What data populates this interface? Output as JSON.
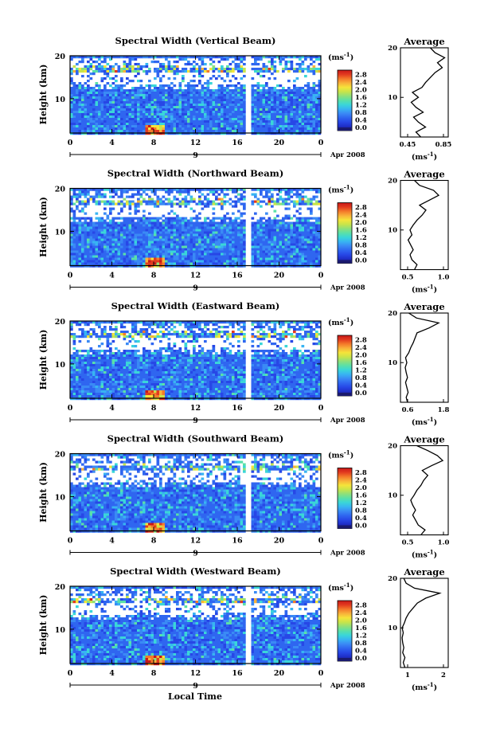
{
  "figure": {
    "ylabel": "Height (km)",
    "xlabel": "Local Time",
    "date_label": "Apr 2008",
    "day_label": "9",
    "unit_label": "(ms",
    "unit_exp": "-1",
    "avg_title": "Average",
    "colorbar_ticks": [
      "0.0",
      "0.4",
      "0.8",
      "1.2",
      "1.6",
      "2.0",
      "2.4",
      "2.8"
    ],
    "colormap": [
      "#1a1a6e",
      "#1f2ec8",
      "#2747e6",
      "#2f66f0",
      "#3a8af5",
      "#38b4f2",
      "#3ad6d8",
      "#5ae0a8",
      "#8ee07a",
      "#c8e44a",
      "#f5e43a",
      "#f8b23a",
      "#f47a2a",
      "#e23a1f",
      "#c81818"
    ]
  },
  "chart_data": [
    {
      "type": "heatmap",
      "title": "Spectral Width (Vertical Beam)",
      "x_ticks": [
        "0",
        "4",
        "8",
        "12",
        "16",
        "20",
        "0"
      ],
      "y_ticks": [
        "20",
        "10"
      ],
      "xlim": [
        0,
        24
      ],
      "ylim": [
        2,
        20
      ],
      "data_gap_hours": [
        16.6,
        17.1
      ],
      "avg": {
        "title": "Average",
        "xticks": [
          "0.45",
          "0.85"
        ],
        "xlim": [
          0.45,
          0.85
        ],
        "profile": [
          [
            2,
            0.62
          ],
          [
            3,
            0.58
          ],
          [
            4,
            0.66
          ],
          [
            5,
            0.6
          ],
          [
            6,
            0.56
          ],
          [
            7,
            0.64
          ],
          [
            8,
            0.58
          ],
          [
            9,
            0.54
          ],
          [
            10,
            0.6
          ],
          [
            11,
            0.55
          ],
          [
            12,
            0.63
          ],
          [
            13,
            0.66
          ],
          [
            14,
            0.7
          ],
          [
            15,
            0.74
          ],
          [
            16,
            0.8
          ],
          [
            17,
            0.76
          ],
          [
            18,
            0.82
          ],
          [
            19,
            0.74
          ],
          [
            20,
            0.7
          ]
        ]
      }
    },
    {
      "type": "heatmap",
      "title": "Spectral Width (Northward Beam)",
      "x_ticks": [
        "0",
        "4",
        "8",
        "12",
        "16",
        "20",
        "0"
      ],
      "y_ticks": [
        "20",
        "10"
      ],
      "xlim": [
        0,
        24
      ],
      "ylim": [
        2,
        20
      ],
      "data_gap_hours": [
        16.6,
        17.1
      ],
      "avg": {
        "title": "Average",
        "xticks": [
          "0.5",
          "1.0"
        ],
        "xlim": [
          0.4,
          1.15
        ],
        "profile": [
          [
            2,
            0.62
          ],
          [
            3,
            0.66
          ],
          [
            4,
            0.58
          ],
          [
            5,
            0.55
          ],
          [
            6,
            0.6
          ],
          [
            7,
            0.56
          ],
          [
            8,
            0.52
          ],
          [
            9,
            0.58
          ],
          [
            10,
            0.55
          ],
          [
            11,
            0.6
          ],
          [
            12,
            0.66
          ],
          [
            13,
            0.74
          ],
          [
            14,
            0.8
          ],
          [
            15,
            0.7
          ],
          [
            16,
            0.85
          ],
          [
            17,
            1.0
          ],
          [
            18,
            0.92
          ],
          [
            19,
            0.7
          ],
          [
            20,
            0.62
          ]
        ]
      }
    },
    {
      "type": "heatmap",
      "title": "Spectral Width (Eastward Beam)",
      "x_ticks": [
        "0",
        "4",
        "8",
        "12",
        "16",
        "20",
        "0"
      ],
      "y_ticks": [
        "20",
        "10"
      ],
      "xlim": [
        0,
        24
      ],
      "ylim": [
        2,
        20
      ],
      "data_gap_hours": [
        16.6,
        17.1
      ],
      "avg": {
        "title": "Average",
        "xticks": [
          "0.6",
          "1.8"
        ],
        "xlim": [
          0.4,
          1.9
        ],
        "profile": [
          [
            2,
            0.62
          ],
          [
            3,
            0.58
          ],
          [
            4,
            0.64
          ],
          [
            5,
            0.6
          ],
          [
            6,
            0.56
          ],
          [
            7,
            0.62
          ],
          [
            8,
            0.58
          ],
          [
            9,
            0.55
          ],
          [
            10,
            0.6
          ],
          [
            11,
            0.56
          ],
          [
            12,
            0.66
          ],
          [
            13,
            0.72
          ],
          [
            14,
            0.8
          ],
          [
            15,
            0.86
          ],
          [
            16,
            0.92
          ],
          [
            17,
            1.3
          ],
          [
            18,
            1.6
          ],
          [
            19,
            0.9
          ],
          [
            20,
            0.66
          ]
        ]
      }
    },
    {
      "type": "heatmap",
      "title": "Spectral Width (Southward Beam)",
      "x_ticks": [
        "0",
        "4",
        "8",
        "12",
        "16",
        "20",
        "0"
      ],
      "y_ticks": [
        "20",
        "10"
      ],
      "xlim": [
        0,
        24
      ],
      "ylim": [
        2,
        20
      ],
      "data_gap_hours": [
        16.6,
        17.1
      ],
      "avg": {
        "title": "Average",
        "xticks": [
          "0.5",
          "1.0"
        ],
        "xlim": [
          0.4,
          1.1
        ],
        "profile": [
          [
            2,
            0.7
          ],
          [
            3,
            0.76
          ],
          [
            4,
            0.66
          ],
          [
            5,
            0.62
          ],
          [
            6,
            0.58
          ],
          [
            7,
            0.62
          ],
          [
            8,
            0.58
          ],
          [
            9,
            0.55
          ],
          [
            10,
            0.6
          ],
          [
            11,
            0.64
          ],
          [
            12,
            0.7
          ],
          [
            13,
            0.74
          ],
          [
            14,
            0.8
          ],
          [
            15,
            0.72
          ],
          [
            16,
            0.86
          ],
          [
            17,
            1.02
          ],
          [
            18,
            0.94
          ],
          [
            19,
            0.8
          ],
          [
            20,
            0.64
          ]
        ]
      }
    },
    {
      "type": "heatmap",
      "title": "Spectral Width (Westward Beam)",
      "x_ticks": [
        "0",
        "4",
        "8",
        "12",
        "16",
        "20",
        "0"
      ],
      "y_ticks": [
        "20",
        "10"
      ],
      "xlim": [
        0,
        24
      ],
      "ylim": [
        2,
        20
      ],
      "data_gap_hours": [
        16.6,
        17.1
      ],
      "avg": {
        "title": "Average",
        "xticks": [
          "1",
          "2"
        ],
        "xlim": [
          0.5,
          2.2
        ],
        "profile": [
          [
            2,
            0.66
          ],
          [
            3,
            0.6
          ],
          [
            4,
            0.66
          ],
          [
            5,
            0.58
          ],
          [
            6,
            0.62
          ],
          [
            7,
            0.58
          ],
          [
            8,
            0.56
          ],
          [
            9,
            0.6
          ],
          [
            10,
            0.56
          ],
          [
            11,
            0.64
          ],
          [
            12,
            0.7
          ],
          [
            13,
            0.8
          ],
          [
            14,
            0.95
          ],
          [
            15,
            1.1
          ],
          [
            16,
            1.4
          ],
          [
            17,
            1.9
          ],
          [
            18,
            1.0
          ],
          [
            19,
            0.7
          ],
          [
            20,
            0.62
          ]
        ]
      }
    }
  ]
}
